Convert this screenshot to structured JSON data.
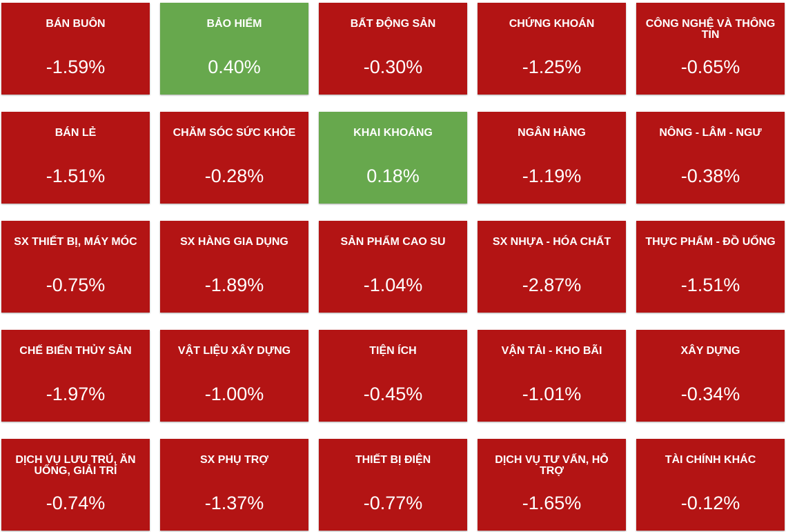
{
  "colors": {
    "negative": "#b31414",
    "positive": "#67a84d",
    "text": "#ffffff"
  },
  "sectors": [
    {
      "name": "BÁN BUÔN",
      "change": "-1.59%",
      "trend": "down"
    },
    {
      "name": "BẢO HIỂM",
      "change": "0.40%",
      "trend": "up"
    },
    {
      "name": "BẤT ĐỘNG SẢN",
      "change": "-0.30%",
      "trend": "down"
    },
    {
      "name": "CHỨNG KHOÁN",
      "change": "-1.25%",
      "trend": "down"
    },
    {
      "name": "CÔNG NGHỆ VÀ THÔNG TIN",
      "change": "-0.65%",
      "trend": "down"
    },
    {
      "name": "BÁN LẺ",
      "change": "-1.51%",
      "trend": "down"
    },
    {
      "name": "CHĂM SÓC SỨC KHỎE",
      "change": "-0.28%",
      "trend": "down"
    },
    {
      "name": "KHAI KHOÁNG",
      "change": "0.18%",
      "trend": "up"
    },
    {
      "name": "NGÂN HÀNG",
      "change": "-1.19%",
      "trend": "down"
    },
    {
      "name": "NÔNG - LÂM - NGƯ",
      "change": "-0.38%",
      "trend": "down"
    },
    {
      "name": "SX THIẾT BỊ, MÁY MÓC",
      "change": "-0.75%",
      "trend": "down"
    },
    {
      "name": "SX HÀNG GIA DỤNG",
      "change": "-1.89%",
      "trend": "down"
    },
    {
      "name": "SẢN PHẨM CAO SU",
      "change": "-1.04%",
      "trend": "down"
    },
    {
      "name": "SX NHỰA - HÓA CHẤT",
      "change": "-2.87%",
      "trend": "down"
    },
    {
      "name": "THỰC PHẨM - ĐỒ UỐNG",
      "change": "-1.51%",
      "trend": "down"
    },
    {
      "name": "CHẾ BIẾN THỦY SẢN",
      "change": "-1.97%",
      "trend": "down"
    },
    {
      "name": "VẬT LIỆU XÂY DỰNG",
      "change": "-1.00%",
      "trend": "down"
    },
    {
      "name": "TIỆN ÍCH",
      "change": "-0.45%",
      "trend": "down"
    },
    {
      "name": "VẬN TẢI - KHO BÃI",
      "change": "-1.01%",
      "trend": "down"
    },
    {
      "name": "XÂY DỰNG",
      "change": "-0.34%",
      "trend": "down"
    },
    {
      "name": "DỊCH VỤ LƯU TRÚ, ĂN UỐNG, GIẢI TRÍ",
      "change": "-0.74%",
      "trend": "down"
    },
    {
      "name": "SX PHỤ TRỢ",
      "change": "-1.37%",
      "trend": "down"
    },
    {
      "name": "THIẾT BỊ ĐIỆN",
      "change": "-0.77%",
      "trend": "down"
    },
    {
      "name": "DỊCH VỤ TƯ VẤN, HỖ TRỢ",
      "change": "-1.65%",
      "trend": "down"
    },
    {
      "name": "TÀI CHÍNH KHÁC",
      "change": "-0.12%",
      "trend": "down"
    }
  ]
}
